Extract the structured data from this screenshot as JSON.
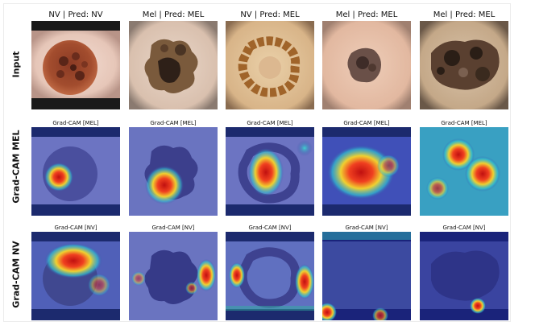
{
  "row_labels": [
    "Input",
    "Grad-CAM MEL",
    "Grad-CAM NV"
  ],
  "columns": [
    {
      "title": "NV | Pred: NV",
      "cam_mel": "Grad-CAM [MEL]",
      "cam_nv": "Grad-CAM [NV]"
    },
    {
      "title": "Mel | Pred: MEL",
      "cam_mel": "Grad-CAM [MEL]",
      "cam_nv": "Grad-CAM [NV]"
    },
    {
      "title": "NV | Pred: MEL",
      "cam_mel": "Grad-CAM [MEL]",
      "cam_nv": "Grad-CAM [NV]"
    },
    {
      "title": "Mel | Pred: MEL",
      "cam_mel": "Grad-CAM [MEL]",
      "cam_nv": "Grad-CAM [NV]"
    },
    {
      "title": "Mel | Pred: MEL",
      "cam_mel": "Grad-CAM [MEL]",
      "cam_nv": "Grad-CAM [NV]"
    }
  ],
  "colors": {
    "cam_base": "#3a4aa8",
    "cam_hot": "#d81818",
    "cam_warm": "#f5e030",
    "cam_mid": "#2fd0c0"
  }
}
